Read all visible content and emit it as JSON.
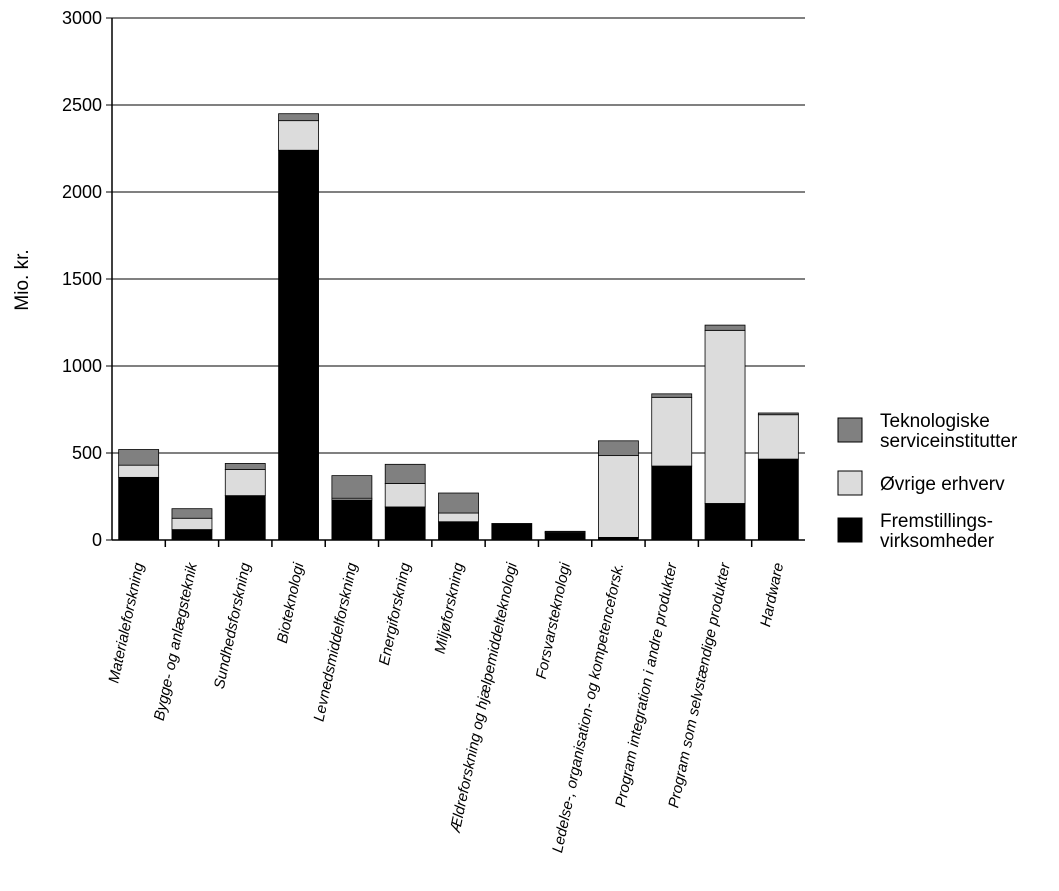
{
  "chart_data": {
    "type": "bar",
    "stacked": true,
    "ylabel": "Mio. kr.",
    "ylim": [
      0,
      3000
    ],
    "yticks": [
      0,
      500,
      1000,
      1500,
      2000,
      2500,
      3000
    ],
    "grid": true,
    "legend_position": "right",
    "categories": [
      "Materialeforskning",
      "Bygge- og anlægsteknik",
      "Sundhedsforskning",
      "Bioteknologi",
      "Levnedsmiddelforskning",
      "Energiforskning",
      "Miljøforskning",
      "Ældreforskning og hjælpemiddelteknologi",
      "Forsvarsteknologi",
      "Ledelse-, organisation- og kompetenceforsk.",
      "Program integration i andre produkter",
      "Program som selvstændige produkter",
      "Hardware"
    ],
    "series": [
      {
        "name": "Fremstillings-virksomheder",
        "legend_lines": [
          "Fremstillings-",
          "virksomheder"
        ],
        "color": "#000000",
        "values": [
          360,
          60,
          255,
          2240,
          230,
          190,
          105,
          95,
          40,
          15,
          425,
          210,
          465
        ]
      },
      {
        "name": "Øvrige erhverv",
        "legend_lines": [
          "Øvrige erhverv"
        ],
        "color": "#dcdcdc",
        "values": [
          70,
          65,
          150,
          170,
          10,
          135,
          50,
          0,
          5,
          470,
          395,
          995,
          255
        ]
      },
      {
        "name": "Teknologiske serviceinstitutter",
        "legend_lines": [
          "Teknologiske",
          "serviceinstitutter"
        ],
        "color": "#808080",
        "values": [
          90,
          55,
          35,
          40,
          130,
          110,
          115,
          0,
          5,
          85,
          20,
          30,
          10
        ]
      }
    ]
  }
}
